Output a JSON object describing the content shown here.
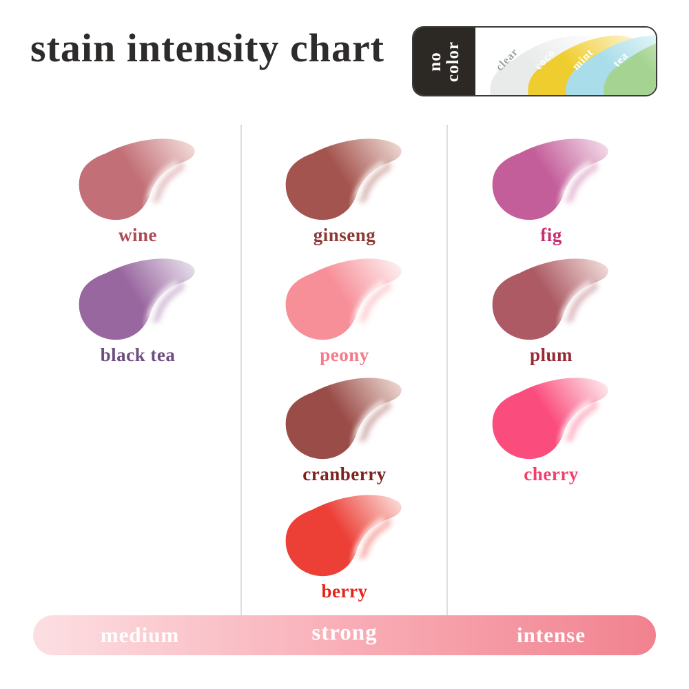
{
  "title": "stain intensity chart",
  "no_color_box": {
    "label_line1": "no",
    "label_line2": "color",
    "swatches": [
      {
        "label": "clear",
        "color": "#e9ebeb",
        "tip": "#fdfdfd",
        "text_color": "#99a1a4"
      },
      {
        "label": "coco",
        "color": "#f0cd2e",
        "tip": "#fbf3cf",
        "text_color": "#ffffff"
      },
      {
        "label": "mint",
        "color": "#a8dde9",
        "tip": "#edf9fb",
        "text_color": "#ffffff"
      },
      {
        "label": "tea",
        "color": "#a5d492",
        "tip": "#eef7e8",
        "text_color": "#ffffff"
      }
    ]
  },
  "columns": [
    {
      "intensity": "medium",
      "swatches": [
        {
          "label": "wine",
          "color": "#c26f77",
          "tip": "#f3dcd9",
          "label_color": "#ad4a54"
        },
        {
          "label": "black tea",
          "color": "#99679f",
          "tip": "#e8e0ec",
          "label_color": "#6f4d80"
        }
      ]
    },
    {
      "intensity": "strong",
      "swatches": [
        {
          "label": "ginseng",
          "color": "#a4544e",
          "tip": "#eed9d3",
          "label_color": "#8c3a34"
        },
        {
          "label": "peony",
          "color": "#f78f99",
          "tip": "#fdf0f1",
          "label_color": "#f5798b"
        },
        {
          "label": "cranberry",
          "color": "#9a4c48",
          "tip": "#edd8d2",
          "label_color": "#7b231e"
        },
        {
          "label": "berry",
          "color": "#ec3f36",
          "tip": "#fbdcd8",
          "label_color": "#e2251c"
        }
      ]
    },
    {
      "intensity": "intense",
      "swatches": [
        {
          "label": "fig",
          "color": "#c45e9a",
          "tip": "#f2dce9",
          "label_color": "#c92d72"
        },
        {
          "label": "plum",
          "color": "#ad5a64",
          "tip": "#f0dcda",
          "label_color": "#962936"
        },
        {
          "label": "cherry",
          "color": "#fb4d7d",
          "tip": "#fde9ed",
          "label_color": "#f23f6a"
        }
      ]
    }
  ],
  "intensity_bar": {
    "labels": [
      "medium",
      "strong",
      "intense"
    ],
    "gradient": [
      "#fcdfe3",
      "#f9aeb7",
      "#f1828f"
    ],
    "text_color": "#ffffff"
  }
}
